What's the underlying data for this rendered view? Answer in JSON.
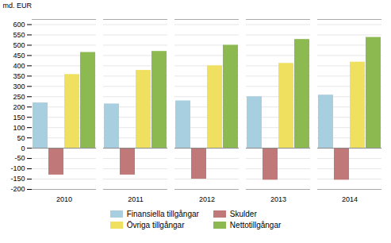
{
  "chart_data": {
    "type": "bar",
    "categories": [
      "2010",
      "2011",
      "2012",
      "2013",
      "2014"
    ],
    "series": [
      {
        "name": "Finansiella tillgångar",
        "color": "#a8cfe0",
        "values": [
          220,
          215,
          230,
          250,
          258
        ]
      },
      {
        "name": "Skulder",
        "color": "#c07878",
        "values": [
          -130,
          -130,
          -150,
          -155,
          -155
        ]
      },
      {
        "name": "Övriga tillgångar",
        "color": "#f0e060",
        "values": [
          358,
          378,
          400,
          412,
          418
        ]
      },
      {
        "name": "Nettotillgångar",
        "color": "#8cba50",
        "values": [
          465,
          470,
          500,
          528,
          538
        ]
      }
    ],
    "ylabel": "md. EUR",
    "ylim": [
      -200,
      625
    ],
    "yticks": [
      -200,
      -150,
      -100,
      -50,
      0,
      50,
      100,
      150,
      200,
      250,
      300,
      350,
      400,
      450,
      500,
      550,
      600
    ],
    "grid": true,
    "legend": "bottom"
  }
}
